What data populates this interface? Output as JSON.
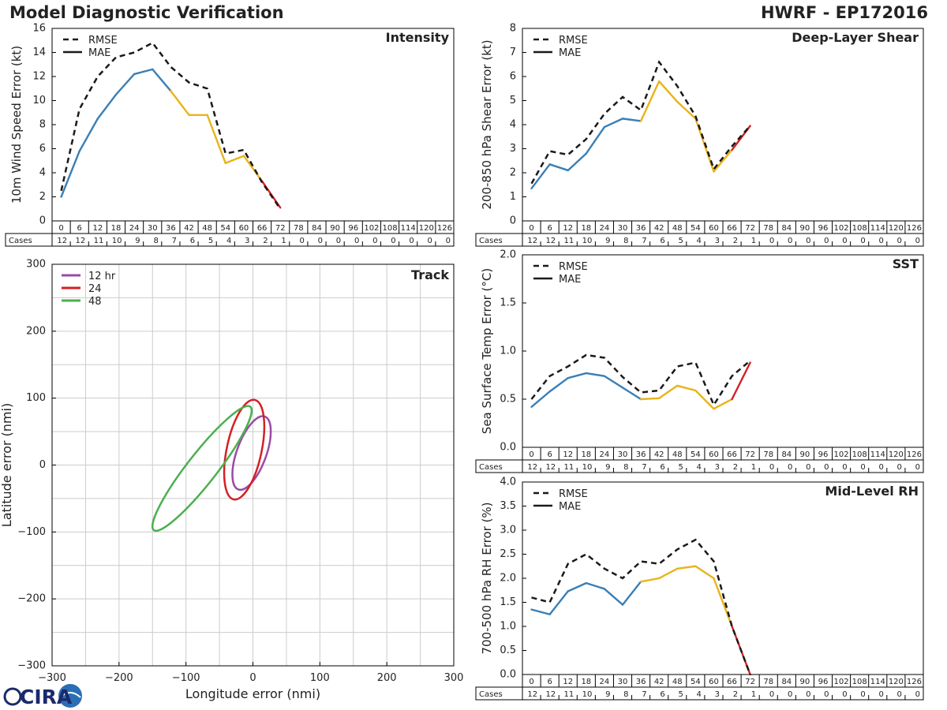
{
  "header": {
    "title": "Model Diagnostic Verification",
    "storm": "HWRF - EP172016"
  },
  "logo": {
    "text": "CIRA",
    "colors": {
      "ring": "#1b2a6b",
      "letters": "#1b2a6b",
      "globe": "#2a6fb5"
    }
  },
  "colors": {
    "blue": "#3a7fb6",
    "yellow": "#e9b319",
    "red": "#d42024",
    "black": "#1a1a1a",
    "purple": "#9b4ba6",
    "green": "#4caf4f",
    "grid": "#cccccc",
    "axis": "#000000"
  },
  "legend_line": {
    "rmse": "RMSE",
    "mae": "MAE"
  },
  "cases_label": "Cases",
  "leadtimes": [
    "0",
    "6",
    "12",
    "18",
    "24",
    "30",
    "36",
    "42",
    "48",
    "54",
    "60",
    "66",
    "72",
    "78",
    "84",
    "90",
    "96",
    "102",
    "108",
    "114",
    "120",
    "126"
  ],
  "cases": [
    "12",
    "12",
    "11",
    "10",
    "9",
    "8",
    "7",
    "6",
    "5",
    "4",
    "3",
    "2",
    "1",
    "0",
    "0",
    "0",
    "0",
    "0",
    "0",
    "0",
    "0",
    "0"
  ],
  "chart_data": [
    {
      "type": "line",
      "title": "Intensity",
      "ylabel": "10m Wind Speed Error (kt)",
      "ylim": [
        0,
        16
      ],
      "yticks": [
        {
          "v": 0,
          "t": "0"
        },
        {
          "v": 2,
          "t": "2"
        },
        {
          "v": 4,
          "t": "4"
        },
        {
          "v": 6,
          "t": "6"
        },
        {
          "v": 8,
          "t": "8"
        },
        {
          "v": 10,
          "t": "10"
        },
        {
          "v": 12,
          "t": "12"
        },
        {
          "v": 14,
          "t": "14"
        },
        {
          "v": 16,
          "t": "16"
        }
      ],
      "x": [
        0,
        6,
        12,
        18,
        24,
        30,
        36,
        42,
        48,
        54,
        60,
        66,
        72
      ],
      "series": [
        {
          "name": "RMSE",
          "values": [
            2.5,
            9.3,
            12.0,
            13.6,
            14.0,
            14.8,
            12.8,
            11.5,
            11.0,
            5.6,
            5.9,
            3.2,
            1.0
          ]
        },
        {
          "name": "MAE",
          "values": [
            2.0,
            5.8,
            8.5,
            10.5,
            12.2,
            12.6,
            10.8,
            8.8,
            8.8,
            4.8,
            5.4,
            3.3,
            1.1
          ]
        }
      ]
    },
    {
      "type": "line",
      "title": "Deep-Layer Shear",
      "ylabel": "200-850 hPa Shear Error (kt)",
      "ylim": [
        0,
        8
      ],
      "yticks": [
        {
          "v": 0,
          "t": "0"
        },
        {
          "v": 1,
          "t": "1"
        },
        {
          "v": 2,
          "t": "2"
        },
        {
          "v": 3,
          "t": "3"
        },
        {
          "v": 4,
          "t": "4"
        },
        {
          "v": 5,
          "t": "5"
        },
        {
          "v": 6,
          "t": "6"
        },
        {
          "v": 7,
          "t": "7"
        },
        {
          "v": 8,
          "t": "8"
        }
      ],
      "x": [
        0,
        6,
        12,
        18,
        24,
        30,
        36,
        42,
        48,
        54,
        60,
        66,
        72
      ],
      "series": [
        {
          "name": "RMSE",
          "values": [
            1.55,
            2.9,
            2.75,
            3.4,
            4.45,
            5.15,
            4.6,
            6.6,
            5.6,
            4.35,
            2.15,
            3.1,
            3.95
          ]
        },
        {
          "name": "MAE",
          "values": [
            1.35,
            2.35,
            2.1,
            2.8,
            3.9,
            4.25,
            4.15,
            5.8,
            4.95,
            4.25,
            2.05,
            2.95,
            3.95
          ]
        }
      ]
    },
    {
      "type": "line",
      "title": "SST",
      "ylabel": "Sea Surface Temp Error (°C)",
      "ylim": [
        0,
        2
      ],
      "yticks": [
        {
          "v": 0,
          "t": "0.0"
        },
        {
          "v": 0.5,
          "t": "0.5"
        },
        {
          "v": 1,
          "t": "1.0"
        },
        {
          "v": 1.5,
          "t": "1.5"
        },
        {
          "v": 2,
          "t": "2.0"
        }
      ],
      "x": [
        0,
        6,
        12,
        18,
        24,
        30,
        36,
        42,
        48,
        54,
        60,
        66,
        72
      ],
      "series": [
        {
          "name": "RMSE",
          "values": [
            0.5,
            0.74,
            0.84,
            0.96,
            0.93,
            0.73,
            0.57,
            0.59,
            0.84,
            0.88,
            0.44,
            0.74,
            0.9
          ]
        },
        {
          "name": "MAE",
          "values": [
            0.42,
            0.58,
            0.72,
            0.77,
            0.74,
            0.62,
            0.5,
            0.51,
            0.64,
            0.59,
            0.4,
            0.5,
            0.88
          ]
        }
      ]
    },
    {
      "type": "line",
      "title": "Mid-Level RH",
      "ylabel": "700-500 hPa RH Error (%)",
      "ylim": [
        0,
        4
      ],
      "yticks": [
        {
          "v": 0,
          "t": "0.0"
        },
        {
          "v": 0.5,
          "t": "0.5"
        },
        {
          "v": 1,
          "t": "1.0"
        },
        {
          "v": 1.5,
          "t": "1.5"
        },
        {
          "v": 2,
          "t": "2.0"
        },
        {
          "v": 2.5,
          "t": "2.5"
        },
        {
          "v": 3,
          "t": "3.0"
        },
        {
          "v": 3.5,
          "t": "3.5"
        },
        {
          "v": 4,
          "t": "4.0"
        }
      ],
      "x": [
        0,
        6,
        12,
        18,
        24,
        30,
        36,
        42,
        48,
        54,
        60,
        66,
        72
      ],
      "series": [
        {
          "name": "RMSE",
          "values": [
            1.6,
            1.5,
            2.3,
            2.5,
            2.2,
            2.0,
            2.35,
            2.3,
            2.6,
            2.8,
            2.35,
            1.0,
            0.0
          ]
        },
        {
          "name": "MAE",
          "values": [
            1.35,
            1.25,
            1.73,
            1.9,
            1.78,
            1.45,
            1.93,
            2.0,
            2.2,
            2.25,
            2.0,
            1.0,
            0.0
          ]
        }
      ]
    },
    {
      "type": "scatter",
      "title": "Track",
      "xlabel": "Longitude error (nmi)",
      "ylabel": "Latitude error (nmi)",
      "xlim": [
        -300,
        300
      ],
      "ylim": [
        -300,
        300
      ],
      "xticks": [
        {
          "v": -300,
          "t": "−300"
        },
        {
          "v": -200,
          "t": "−200"
        },
        {
          "v": -100,
          "t": "−100"
        },
        {
          "v": 0,
          "t": "0"
        },
        {
          "v": 100,
          "t": "100"
        },
        {
          "v": 200,
          "t": "200"
        },
        {
          "v": 300,
          "t": "300"
        }
      ],
      "yticks": [
        {
          "v": -300,
          "t": "−300"
        },
        {
          "v": -200,
          "t": "−200"
        },
        {
          "v": -100,
          "t": "−100"
        },
        {
          "v": 0,
          "t": "0"
        },
        {
          "v": 100,
          "t": "100"
        },
        {
          "v": 200,
          "t": "200"
        },
        {
          "v": 300,
          "t": "300"
        }
      ],
      "grid_step": 50,
      "series": [
        {
          "name": "12 hr",
          "color": "purple",
          "ellipse": {
            "cx": -2,
            "cy": 18,
            "rx": 22,
            "ry": 58,
            "angle": 20
          }
        },
        {
          "name": "24",
          "color": "red",
          "ellipse": {
            "cx": -13,
            "cy": 23,
            "rx": 26,
            "ry": 76,
            "angle": 12
          }
        },
        {
          "name": "48",
          "color": "green",
          "ellipse": {
            "cx": -76,
            "cy": -5,
            "rx": 22,
            "ry": 117,
            "angle": 38
          }
        }
      ]
    }
  ]
}
